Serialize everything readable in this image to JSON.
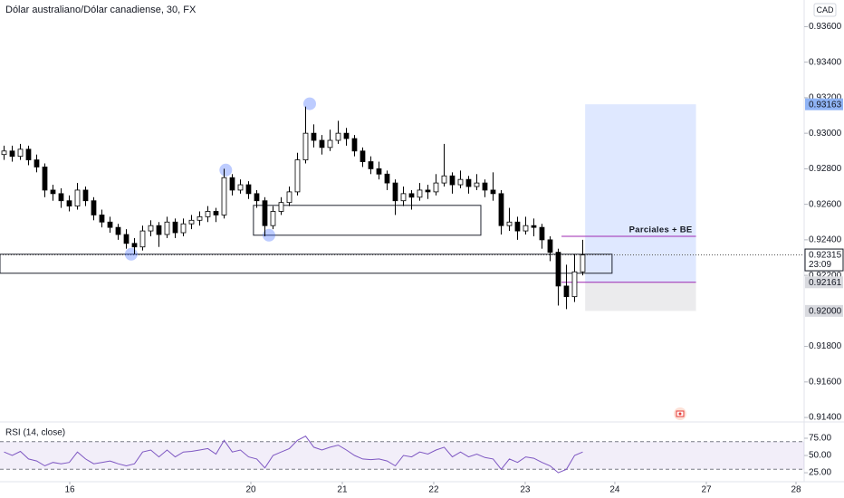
{
  "chart_data": {
    "type": "candlestick",
    "title": "Dólar australiano/Dólar canadiense, 30, FX",
    "currency": "CAD",
    "xlim": [
      0,
      98.67
    ],
    "ylim": [
      0.9138,
      0.9375
    ],
    "xticks": [
      {
        "value": 8.56,
        "label": "16"
      },
      {
        "value": 30.78,
        "label": "20"
      },
      {
        "value": 42,
        "label": "21"
      },
      {
        "value": 53.22,
        "label": "22"
      },
      {
        "value": 64.44,
        "label": "23"
      },
      {
        "value": 75.44,
        "label": "24"
      },
      {
        "value": 86.67,
        "label": "27"
      },
      {
        "value": 97.67,
        "label": "28"
      }
    ],
    "yticks": [
      {
        "value": 0.936,
        "label": "0.93600"
      },
      {
        "value": 0.934,
        "label": "0.93400"
      },
      {
        "value": 0.932,
        "label": "0.93200"
      },
      {
        "value": 0.93,
        "label": "0.93000"
      },
      {
        "value": 0.928,
        "label": "0.92800"
      },
      {
        "value": 0.926,
        "label": "0.92600"
      },
      {
        "value": 0.924,
        "label": "0.92400"
      },
      {
        "value": 0.922,
        "label": "0.92200"
      },
      {
        "value": 0.918,
        "label": "0.91800"
      },
      {
        "value": 0.916,
        "label": "0.91600"
      },
      {
        "value": 0.914,
        "label": "0.91400"
      }
    ],
    "up_color": "#ffffff",
    "down_color": "#000000",
    "x": [
      0.5,
      1.5,
      2.5,
      3.5,
      4.5,
      5.5,
      6.5,
      7.5,
      8.5,
      9.5,
      10.5,
      11.5,
      12.5,
      13.5,
      14.5,
      15.5,
      16.5,
      17.5,
      18.5,
      19.5,
      20.5,
      21.5,
      22.5,
      23.5,
      24.5,
      25.5,
      26.5,
      27.5,
      28.5,
      29.5,
      30.5,
      31.5,
      32.5,
      33.5,
      34.5,
      35.5,
      36.5,
      37.5,
      38.5,
      39.5,
      40.5,
      41.5,
      42.5,
      43.5,
      44.5,
      45.5,
      46.5,
      47.5,
      48.5,
      49.5,
      50.5,
      51.5,
      52.5,
      53.5,
      54.5,
      55.5,
      56.5,
      57.5,
      58.5,
      59.5,
      60.5,
      61.5,
      62.5,
      63.5,
      64.5,
      65.5,
      66.5,
      67.5,
      68.5,
      69.5,
      70.5,
      71.5
    ],
    "ohlc": [
      [
        0.9288,
        0.9293,
        0.9285,
        0.929
      ],
      [
        0.929,
        0.9293,
        0.9284,
        0.9287
      ],
      [
        0.9287,
        0.9294,
        0.9285,
        0.9291
      ],
      [
        0.9291,
        0.9293,
        0.9282,
        0.9285
      ],
      [
        0.9285,
        0.9288,
        0.9278,
        0.9281
      ],
      [
        0.9281,
        0.9283,
        0.9264,
        0.9268
      ],
      [
        0.9268,
        0.9271,
        0.9262,
        0.9266
      ],
      [
        0.9266,
        0.9269,
        0.9258,
        0.9262
      ],
      [
        0.9262,
        0.9265,
        0.9256,
        0.9259
      ],
      [
        0.9259,
        0.9272,
        0.9257,
        0.9268
      ],
      [
        0.9268,
        0.927,
        0.9259,
        0.9262
      ],
      [
        0.9262,
        0.9264,
        0.9251,
        0.9254
      ],
      [
        0.9254,
        0.9257,
        0.9247,
        0.925
      ],
      [
        0.925,
        0.9253,
        0.9244,
        0.9247
      ],
      [
        0.9247,
        0.9249,
        0.924,
        0.9243
      ],
      [
        0.9243,
        0.9246,
        0.9235,
        0.9238
      ],
      [
        0.9238,
        0.9241,
        0.9232,
        0.9236
      ],
      [
        0.9236,
        0.9248,
        0.9234,
        0.9245
      ],
      [
        0.9245,
        0.9251,
        0.9242,
        0.9248
      ],
      [
        0.9248,
        0.925,
        0.9236,
        0.9243
      ],
      [
        0.9243,
        0.9253,
        0.9241,
        0.925
      ],
      [
        0.925,
        0.9252,
        0.9241,
        0.9244
      ],
      [
        0.9244,
        0.9252,
        0.9242,
        0.9249
      ],
      [
        0.9249,
        0.9254,
        0.9246,
        0.9251
      ],
      [
        0.9251,
        0.9256,
        0.9248,
        0.9253
      ],
      [
        0.9253,
        0.9259,
        0.925,
        0.9256
      ],
      [
        0.9256,
        0.9258,
        0.925,
        0.9254
      ],
      [
        0.9254,
        0.928,
        0.9252,
        0.9275
      ],
      [
        0.9275,
        0.9277,
        0.9265,
        0.9268
      ],
      [
        0.9268,
        0.9274,
        0.9266,
        0.9271
      ],
      [
        0.9271,
        0.9273,
        0.9263,
        0.9266
      ],
      [
        0.9266,
        0.9268,
        0.9258,
        0.9262
      ],
      [
        0.9262,
        0.9264,
        0.9242,
        0.9248
      ],
      [
        0.9248,
        0.9259,
        0.9246,
        0.9256
      ],
      [
        0.9256,
        0.9264,
        0.9254,
        0.9261
      ],
      [
        0.9261,
        0.927,
        0.9259,
        0.9267
      ],
      [
        0.9267,
        0.9289,
        0.9265,
        0.9285
      ],
      [
        0.9285,
        0.9315,
        0.9283,
        0.93
      ],
      [
        0.93,
        0.9305,
        0.9292,
        0.9296
      ],
      [
        0.9296,
        0.9299,
        0.9288,
        0.9292
      ],
      [
        0.9292,
        0.9302,
        0.929,
        0.9296
      ],
      [
        0.9296,
        0.9307,
        0.9294,
        0.93
      ],
      [
        0.93,
        0.9303,
        0.9293,
        0.9297
      ],
      [
        0.9297,
        0.9299,
        0.9287,
        0.929
      ],
      [
        0.929,
        0.9292,
        0.9281,
        0.9284
      ],
      [
        0.9284,
        0.9287,
        0.9277,
        0.928
      ],
      [
        0.928,
        0.9284,
        0.9274,
        0.9277
      ],
      [
        0.9277,
        0.9279,
        0.9268,
        0.9272
      ],
      [
        0.9272,
        0.9274,
        0.9254,
        0.9262
      ],
      [
        0.9262,
        0.927,
        0.9259,
        0.9266
      ],
      [
        0.9266,
        0.9268,
        0.9257,
        0.9264
      ],
      [
        0.9264,
        0.9272,
        0.9262,
        0.9268
      ],
      [
        0.9268,
        0.9271,
        0.9263,
        0.9267
      ],
      [
        0.9267,
        0.9277,
        0.9265,
        0.9272
      ],
      [
        0.9272,
        0.9294,
        0.927,
        0.9276
      ],
      [
        0.9276,
        0.9278,
        0.9266,
        0.9271
      ],
      [
        0.9271,
        0.9279,
        0.9269,
        0.9274
      ],
      [
        0.9274,
        0.9276,
        0.9266,
        0.927
      ],
      [
        0.927,
        0.9277,
        0.9268,
        0.9272
      ],
      [
        0.9272,
        0.9274,
        0.9264,
        0.9268
      ],
      [
        0.9268,
        0.9278,
        0.9262,
        0.9266
      ],
      [
        0.9266,
        0.9268,
        0.9243,
        0.9248
      ],
      [
        0.9248,
        0.9258,
        0.9245,
        0.925
      ],
      [
        0.925,
        0.9253,
        0.924,
        0.9245
      ],
      [
        0.9245,
        0.9253,
        0.9243,
        0.9248
      ],
      [
        0.9248,
        0.9252,
        0.9242,
        0.9247
      ],
      [
        0.9247,
        0.9249,
        0.9235,
        0.924
      ],
      [
        0.924,
        0.9242,
        0.9228,
        0.9233
      ],
      [
        0.9233,
        0.9235,
        0.9203,
        0.9214
      ],
      [
        0.9214,
        0.9226,
        0.9201,
        0.9208
      ],
      [
        0.9208,
        0.9232,
        0.9205,
        0.9222
      ],
      [
        0.9222,
        0.924,
        0.922,
        0.92315
      ]
    ],
    "rectangles": [
      {
        "x": [
          31.1,
          59
        ],
        "y": [
          0.92594,
          0.92426
        ]
      },
      {
        "x": [
          0,
          75.1
        ],
        "y": [
          0.92319,
          0.92212
        ]
      }
    ],
    "highlights": [
      {
        "x": 16.1,
        "y": 0.92319
      },
      {
        "x": 27.7,
        "y": 0.92793
      },
      {
        "x": 38,
        "y": 0.93166
      },
      {
        "x": 33,
        "y": 0.92426
      }
    ],
    "position": {
      "x": [
        71.8,
        85.4
      ],
      "target": 0.93163,
      "entry": 0.92161,
      "stop": 0.92
    },
    "lines": [
      {
        "label": "Parciales + BE",
        "value": 0.9242,
        "x": [
          68.9,
          85.4
        ],
        "color": "#9c27b0"
      },
      {
        "value": 0.92161,
        "x": [
          68.9,
          85.4
        ],
        "color": "#9c27b0"
      }
    ],
    "price_labels": [
      {
        "value": 0.93163,
        "label": "0.93163",
        "bg": "#90b4f5"
      },
      {
        "value": 0.92161,
        "label": "0.92161",
        "bg": "#d9dadf"
      },
      {
        "value": 0.92,
        "label": "0.92000",
        "bg": "#d9dadf"
      }
    ],
    "last_price": {
      "value": 0.92315,
      "label": "0.92315",
      "countdown": "23:09"
    },
    "indicator": {
      "name": "RSI (14, close)",
      "color": "#7e57c2",
      "ylim": [
        12,
        96
      ],
      "bands": [
        30,
        70
      ],
      "yticks": [
        {
          "value": 75,
          "label": "75.00"
        },
        {
          "value": 50,
          "label": "50.00"
        },
        {
          "value": 25,
          "label": "25.00"
        }
      ],
      "values": [
        55,
        50,
        56,
        45,
        42,
        35,
        40,
        38,
        40,
        55,
        45,
        38,
        40,
        42,
        38,
        35,
        38,
        55,
        58,
        48,
        58,
        48,
        55,
        56,
        58,
        60,
        52,
        72,
        55,
        58,
        48,
        45,
        32,
        50,
        55,
        60,
        72,
        78,
        62,
        58,
        62,
        65,
        58,
        50,
        45,
        44,
        45,
        42,
        35,
        50,
        48,
        55,
        52,
        58,
        62,
        48,
        55,
        48,
        52,
        47,
        45,
        30,
        45,
        40,
        48,
        46,
        40,
        35,
        25,
        30,
        50,
        55
      ]
    }
  }
}
